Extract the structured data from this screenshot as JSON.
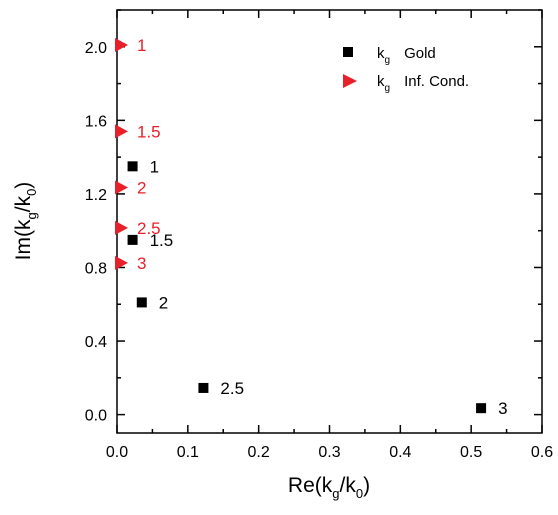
{
  "chart_data": {
    "type": "scatter",
    "xlabel": {
      "main": "Re(k",
      "sub1": "g",
      "mid": "/k",
      "sub2": "0",
      "end": ")"
    },
    "ylabel": {
      "main": "Im(k",
      "sub1": "g",
      "mid": "/k",
      "sub2": "0",
      "end": ")"
    },
    "xlim": [
      0,
      0.6
    ],
    "ylim": [
      -0.1,
      2.2
    ],
    "xticks": [
      "0.0",
      "0.1",
      "0.2",
      "0.3",
      "0.4",
      "0.5",
      "0.6"
    ],
    "yticks": [
      "0.0",
      "0.4",
      "0.8",
      "1.2",
      "1.6",
      "2.0"
    ],
    "legend_position": "top-right",
    "series": [
      {
        "name": {
          "main": "k",
          "sub": "g",
          "suffix": "Gold"
        },
        "marker": "square",
        "color": "#000000",
        "points": [
          {
            "x": 0.022,
            "y": 1.35,
            "label": "1"
          },
          {
            "x": 0.022,
            "y": 0.95,
            "label": "1.5"
          },
          {
            "x": 0.035,
            "y": 0.61,
            "label": "2"
          },
          {
            "x": 0.122,
            "y": 0.145,
            "label": "2.5"
          },
          {
            "x": 0.514,
            "y": 0.035,
            "label": "3"
          }
        ]
      },
      {
        "name": {
          "main": "k",
          "sub": "g",
          "suffix": "Inf. Cond."
        },
        "marker": "triangle-right",
        "color": "#e8202a",
        "points": [
          {
            "x": 0.0,
            "y": 2.01,
            "label": "1"
          },
          {
            "x": 0.0,
            "y": 1.54,
            "label": "1.5"
          },
          {
            "x": 0.0,
            "y": 1.235,
            "label": "2"
          },
          {
            "x": 0.0,
            "y": 1.015,
            "label": "2.5"
          },
          {
            "x": 0.0,
            "y": 0.825,
            "label": "3"
          }
        ]
      }
    ]
  }
}
